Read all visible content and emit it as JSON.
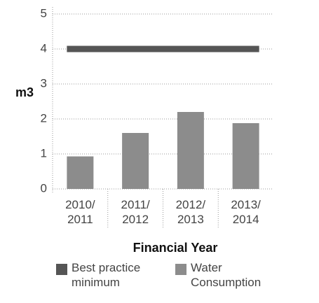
{
  "chart_data": {
    "type": "bar",
    "categories": [
      "2010/ 2011",
      "2011/ 2012",
      "2012/ 2013",
      "2013/ 2014"
    ],
    "series": [
      {
        "name": "Best practice minimum",
        "color": "#555555",
        "type": "line",
        "values": [
          4,
          4,
          4,
          4
        ]
      },
      {
        "name": "Water Consumption",
        "color": "#8c8c8c",
        "type": "bar",
        "values": [
          0.93,
          1.6,
          2.2,
          1.88
        ]
      }
    ],
    "ylabel": "m3",
    "xlabel": "Financial Year",
    "ylim": [
      0,
      5
    ],
    "yticks": [
      0,
      1,
      2,
      3,
      4,
      5
    ],
    "grid": true
  }
}
